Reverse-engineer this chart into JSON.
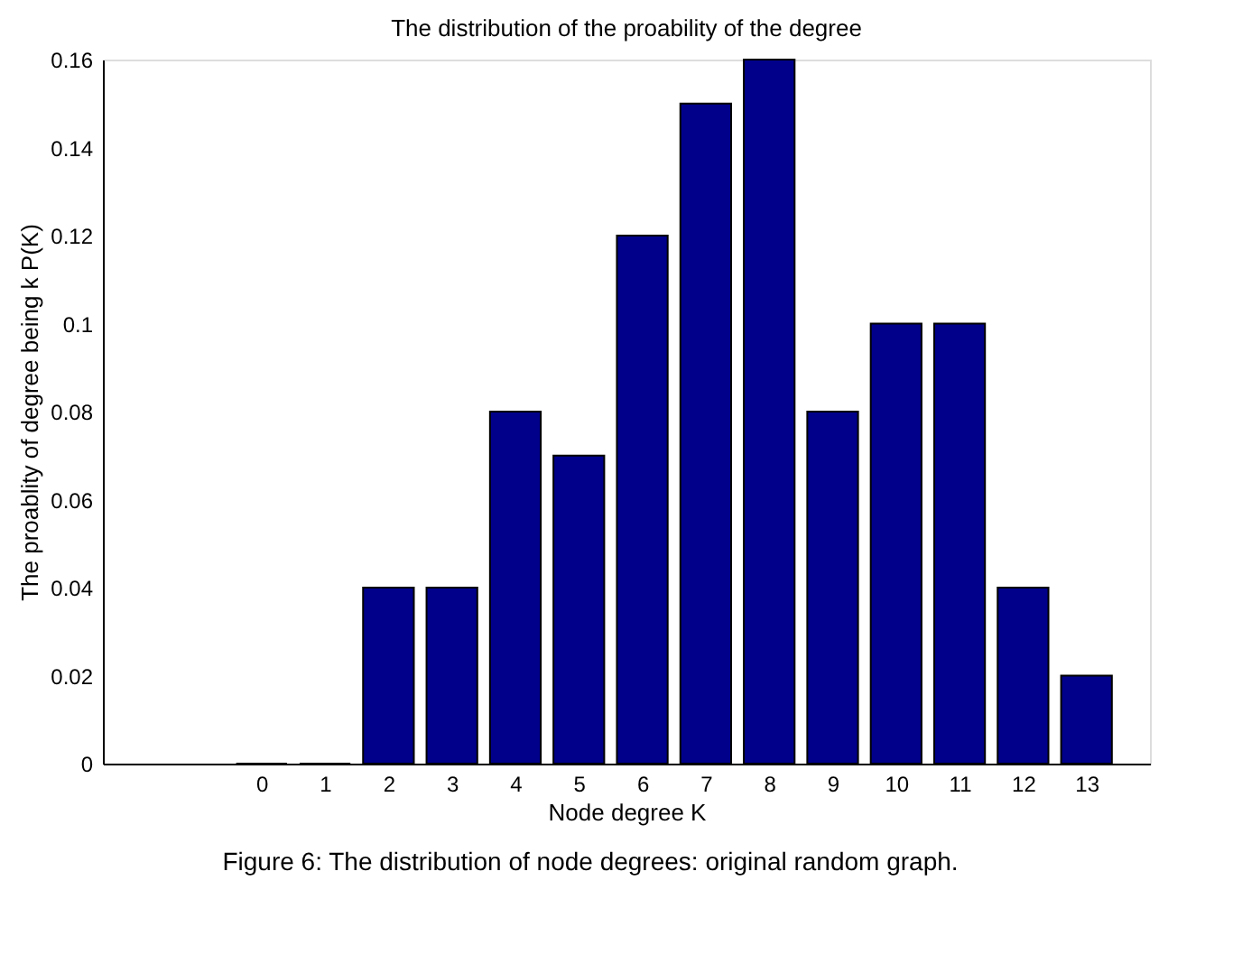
{
  "chart_data": {
    "type": "bar",
    "title": "The distribution of the proability of the degree",
    "xlabel": "Node degree K",
    "ylabel": "The proablity of degree being k P(K)",
    "x": [
      0,
      1,
      2,
      3,
      4,
      5,
      6,
      7,
      8,
      9,
      10,
      11,
      12,
      13
    ],
    "series": [
      {
        "color": "#00008b",
        "values": [
          0,
          0,
          0.04,
          0.04,
          0.08,
          0.07,
          0.12,
          0.15,
          0.16,
          0.08,
          0.1,
          0.1,
          0.04,
          0.02
        ]
      }
    ],
    "xlim": [
      -2.5,
      14
    ],
    "xticks": [
      0,
      1,
      2,
      3,
      4,
      5,
      6,
      7,
      8,
      9,
      10,
      11,
      12,
      13
    ],
    "ylim": [
      0,
      0.16
    ],
    "yticks": [
      {
        "value": 0,
        "label": "0"
      },
      0.02,
      0.04,
      0.06,
      0.08,
      {
        "value": 0.1,
        "label": "0.1"
      },
      0.12,
      0.14,
      0.16
    ],
    "grid": false,
    "legend": false,
    "annotations": [
      "Figure 6: The distribution of node degrees: original random graph."
    ]
  }
}
